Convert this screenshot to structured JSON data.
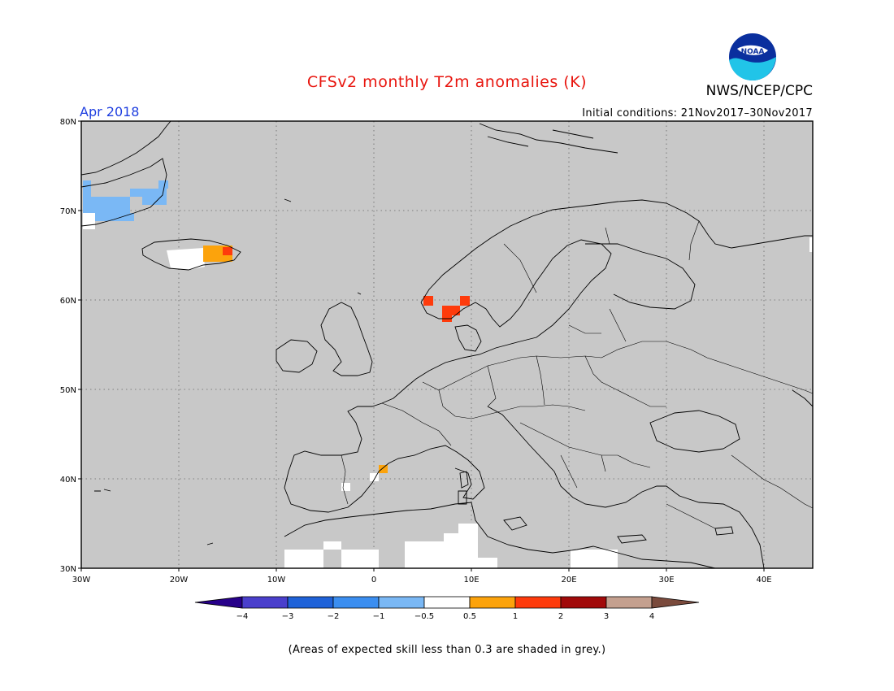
{
  "title": "CFSv2 monthly T2m anomalies (K)",
  "org": "NWS/NCEP/CPC",
  "valid": "Apr 2018",
  "initial_conditions": "Initial conditions: 21Nov2017–30Nov2017",
  "footnote": "(Areas of expected skill less than 0.3 are shaded in grey.)",
  "logo": {
    "text": "NOAA",
    "icon": "noaa-logo-icon"
  },
  "map": {
    "lon_range": [
      -30,
      45
    ],
    "lat_range": [
      30,
      80
    ],
    "lon_ticks": [
      {
        "value": -30,
        "label": "30W"
      },
      {
        "value": -20,
        "label": "20W"
      },
      {
        "value": -10,
        "label": "10W"
      },
      {
        "value": 0,
        "label": "0"
      },
      {
        "value": 10,
        "label": "10E"
      },
      {
        "value": 20,
        "label": "20E"
      },
      {
        "value": 30,
        "label": "30E"
      },
      {
        "value": 40,
        "label": "40E"
      }
    ],
    "lat_ticks": [
      {
        "value": 30,
        "label": "30N"
      },
      {
        "value": 40,
        "label": "40N"
      },
      {
        "value": 50,
        "label": "50N"
      },
      {
        "value": 60,
        "label": "60N"
      },
      {
        "value": 70,
        "label": "70N"
      },
      {
        "value": 80,
        "label": "80N"
      }
    ],
    "background_color": "#c8c8c8",
    "grid": "dotted"
  },
  "colorbar": {
    "labels": [
      "−4",
      "−3",
      "−2",
      "−1",
      "−0.5",
      "0.5",
      "1",
      "2",
      "3",
      "4"
    ],
    "colors": [
      "#27008a",
      "#4a3fcc",
      "#1f62d8",
      "#3b8ef0",
      "#7ab8f5",
      "#ffffff",
      "#fca30c",
      "#fe3b0c",
      "#a10a0a",
      "#c4a08f",
      "#7a4a3c"
    ]
  }
}
